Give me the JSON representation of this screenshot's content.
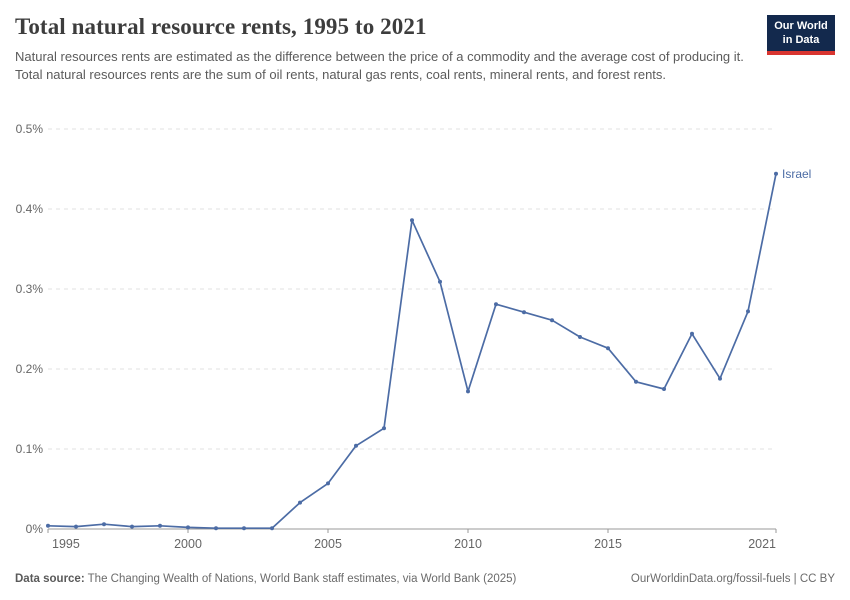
{
  "header": {
    "title": "Total natural resource rents, 1995 to 2021",
    "subtitle": "Natural resources rents are estimated as the difference between the price of a commodity and the average cost of producing it. Total natural resources rents are the sum of oil rents, natural gas rents, coal rents, mineral rents, and forest rents.",
    "logo": {
      "line1": "Our World",
      "line2": "in Data"
    }
  },
  "chart_data": {
    "type": "line",
    "title": "Total natural resource rents, 1995 to 2021",
    "xlabel": "",
    "ylabel": "",
    "xlim": [
      1995,
      2021
    ],
    "ylim": [
      0,
      0.5
    ],
    "xticks": [
      1995,
      2000,
      2005,
      2010,
      2015,
      2021
    ],
    "yticks": [
      0,
      0.1,
      0.2,
      0.3,
      0.4,
      0.5
    ],
    "ytick_suffix": "%",
    "grid": "horizontal-dashed",
    "legend_position": "end-of-line-label",
    "series": [
      {
        "name": "Israel",
        "color": "#4C6CA5",
        "x": [
          1995,
          1996,
          1997,
          1998,
          1999,
          2000,
          2001,
          2002,
          2003,
          2004,
          2005,
          2006,
          2007,
          2008,
          2009,
          2010,
          2011,
          2012,
          2013,
          2014,
          2015,
          2016,
          2017,
          2018,
          2019,
          2020,
          2021
        ],
        "values": [
          0.004,
          0.003,
          0.006,
          0.003,
          0.004,
          0.002,
          0.001,
          0.001,
          0.001,
          0.033,
          0.057,
          0.104,
          0.126,
          0.386,
          0.309,
          0.172,
          0.281,
          0.271,
          0.261,
          0.24,
          0.226,
          0.184,
          0.175,
          0.244,
          0.188,
          0.272,
          0.444
        ]
      }
    ]
  },
  "footer": {
    "source_label": "Data source:",
    "source_text": " The Changing Wealth of Nations, World Bank staff estimates, via World Bank (2025)",
    "credit": "OurWorldinData.org/fossil-fuels | CC BY"
  },
  "colors": {
    "line": "#4C6CA5",
    "grid": "#e2e2e2",
    "axis": "#999999",
    "tick_label": "#666666",
    "title": "#3d3d3d",
    "subtitle": "#5b5b5b",
    "logo_bg": "#13294d",
    "logo_red": "#d93530"
  }
}
